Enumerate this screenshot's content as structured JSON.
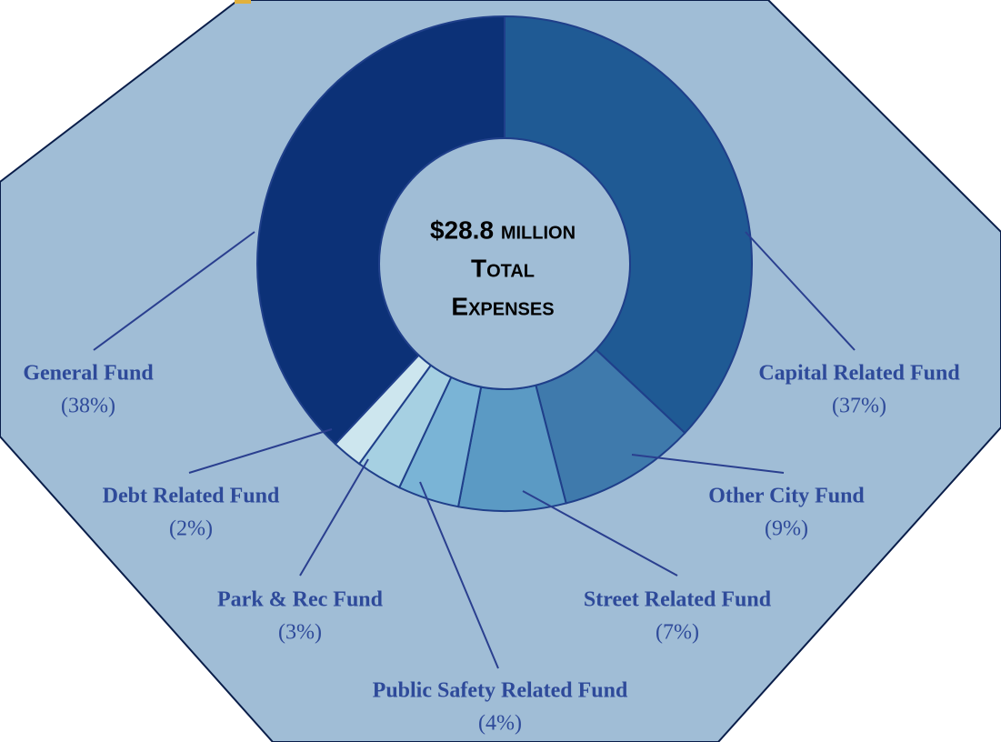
{
  "chart_data": {
    "type": "donut",
    "center_label": [
      "$28.8 million",
      "Total",
      "Expenses"
    ],
    "categories": [
      "Capital Related Fund",
      "Other City Fund",
      "Street Related Fund",
      "Public Safety Related Fund",
      "Park & Rec Fund",
      "Debt Related Fund",
      "General Fund"
    ],
    "values": [
      37,
      9,
      7,
      4,
      3,
      2,
      38
    ],
    "value_labels": [
      "(37%)",
      "(9%)",
      "(7%)",
      "(4%)",
      "(3%)",
      "(2%)",
      "(38%)"
    ],
    "colors": [
      "#1f5a94",
      "#3f7aac",
      "#5b9ac4",
      "#7ab4d6",
      "#a6d0e2",
      "#cde6ee",
      "#0c3177"
    ]
  }
}
